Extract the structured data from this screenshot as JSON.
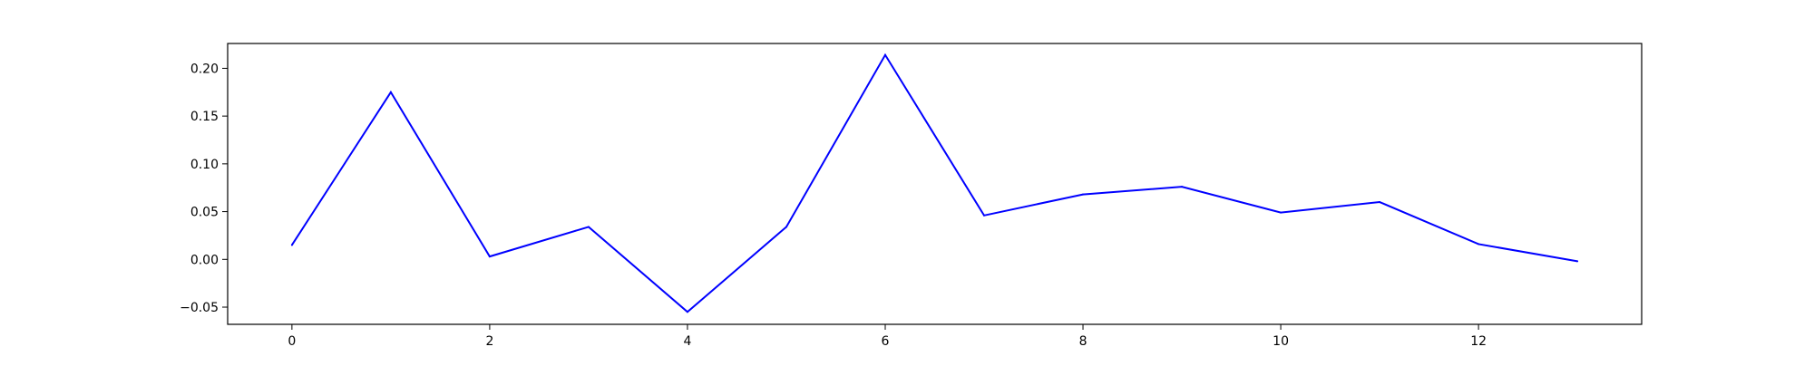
{
  "chart_data": {
    "type": "line",
    "title": "",
    "xlabel": "",
    "ylabel": "",
    "grid": false,
    "xlim": [
      -0.65,
      13.65
    ],
    "ylim": [
      -0.068,
      0.226
    ],
    "x_ticks": [
      0,
      2,
      4,
      6,
      8,
      10,
      12
    ],
    "x_tick_labels": [
      "0",
      "2",
      "4",
      "6",
      "8",
      "10",
      "12"
    ],
    "y_ticks": [
      -0.05,
      0.0,
      0.05,
      0.1,
      0.15,
      0.2
    ],
    "y_tick_labels": [
      "−0.05",
      "0.00",
      "0.05",
      "0.10",
      "0.15",
      "0.20"
    ],
    "series": [
      {
        "color": "#0000ff",
        "x": [
          0,
          1,
          2,
          3,
          4,
          5,
          6,
          7,
          8,
          9,
          10,
          11,
          12,
          13
        ],
        "y": [
          0.015,
          0.175,
          0.003,
          0.034,
          -0.055,
          0.034,
          0.214,
          0.046,
          0.068,
          0.076,
          0.049,
          0.06,
          0.016,
          -0.002
        ]
      }
    ]
  }
}
